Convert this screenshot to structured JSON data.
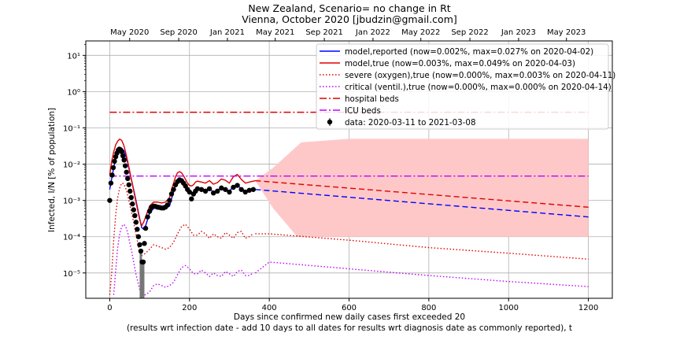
{
  "chart_data": {
    "type": "line",
    "title": "New Zealand, Scenario= no change in Rt",
    "subtitle": "Vienna, October 2020 [jbudzin@gmail.com]",
    "xlabel": "Days since confirmed new daily cases first exceeded 20",
    "xlabel2": "(results wrt infection date - add 10 days to all dates for results wrt diagnosis date as commonly reported), t",
    "ylabel": "Infected, I/N [% of population]",
    "xlim": [
      -60,
      1260
    ],
    "ylim": [
      2e-06,
      25
    ],
    "yscale": "log",
    "grid": true,
    "legend_position": "top-right",
    "x_ticks": [
      0,
      200,
      400,
      600,
      800,
      1000,
      1200
    ],
    "y_ticks": [
      {
        "value": 1e-05,
        "label": "10⁻⁵"
      },
      {
        "value": 0.0001,
        "label": "10⁻⁴"
      },
      {
        "value": 0.001,
        "label": "10⁻³"
      },
      {
        "value": 0.01,
        "label": "10⁻²"
      },
      {
        "value": 0.1,
        "label": "10⁻¹"
      },
      {
        "value": 1,
        "label": "10⁰"
      },
      {
        "value": 10,
        "label": "10¹"
      }
    ],
    "top_axis_ticks": [
      {
        "x": 50,
        "label": "May 2020"
      },
      {
        "x": 173,
        "label": "Sep 2020"
      },
      {
        "x": 295,
        "label": "Jan 2021"
      },
      {
        "x": 415,
        "label": "May 2021"
      },
      {
        "x": 538,
        "label": "Sep 2021"
      },
      {
        "x": 660,
        "label": "Jan 2022"
      },
      {
        "x": 780,
        "label": "May 2022"
      },
      {
        "x": 903,
        "label": "Sep 2022"
      },
      {
        "x": 1025,
        "label": "Jan 2023"
      },
      {
        "x": 1145,
        "label": "May 2023"
      }
    ],
    "series": [
      {
        "name": "model,reported (now=0.002%, max=0.027% on 2020-04-02)",
        "color": "#0000ff",
        "style": "solid",
        "x": [
          0,
          5,
          10,
          15,
          20,
          25,
          30,
          35,
          40,
          45,
          50,
          55,
          60,
          65,
          70,
          75,
          80,
          85,
          90,
          95,
          100,
          110,
          120,
          130,
          140,
          150,
          155,
          160,
          165,
          170,
          175,
          180,
          185,
          190,
          195,
          200,
          205,
          210,
          215,
          220,
          230,
          240,
          250,
          260,
          270,
          280,
          290,
          300,
          310,
          320,
          330,
          340,
          350,
          360,
          365
        ],
        "y": [
          0.002,
          0.004,
          0.008,
          0.014,
          0.021,
          0.026,
          0.027,
          0.024,
          0.017,
          0.011,
          0.006,
          0.0035,
          0.002,
          0.0011,
          0.0006,
          0.00032,
          0.00018,
          0.00016,
          0.0002,
          0.0003,
          0.00045,
          0.0006,
          0.00065,
          0.00065,
          0.0006,
          0.0007,
          0.0011,
          0.0017,
          0.0026,
          0.0034,
          0.0038,
          0.0036,
          0.003,
          0.0024,
          0.0019,
          0.0016,
          0.0015,
          0.0016,
          0.0019,
          0.0021,
          0.002,
          0.0019,
          0.0021,
          0.0017,
          0.0019,
          0.0022,
          0.0021,
          0.0018,
          0.0024,
          0.0026,
          0.0021,
          0.0018,
          0.0019,
          0.002,
          0.002
        ]
      },
      {
        "name": "model,true (now=0.003%, max=0.049% on 2020-04-03)",
        "color": "#e00000",
        "style": "solid",
        "x": [
          0,
          5,
          10,
          15,
          20,
          25,
          30,
          35,
          40,
          45,
          50,
          55,
          60,
          65,
          70,
          75,
          80,
          85,
          90,
          95,
          100,
          110,
          120,
          130,
          140,
          150,
          155,
          160,
          165,
          170,
          175,
          180,
          185,
          190,
          195,
          200,
          205,
          210,
          215,
          220,
          230,
          240,
          250,
          260,
          270,
          280,
          290,
          300,
          310,
          320,
          330,
          340,
          350,
          360,
          365
        ],
        "y": [
          0.005,
          0.012,
          0.022,
          0.034,
          0.043,
          0.049,
          0.045,
          0.034,
          0.021,
          0.012,
          0.0065,
          0.0035,
          0.0019,
          0.001,
          0.00055,
          0.0003,
          0.0002,
          0.00025,
          0.00035,
          0.0005,
          0.0007,
          0.0009,
          0.0009,
          0.00085,
          0.0009,
          0.0012,
          0.002,
          0.003,
          0.0045,
          0.0058,
          0.0062,
          0.0058,
          0.0048,
          0.0038,
          0.003,
          0.0026,
          0.0025,
          0.0027,
          0.0032,
          0.0034,
          0.0032,
          0.003,
          0.0035,
          0.0028,
          0.0031,
          0.0039,
          0.0036,
          0.003,
          0.0045,
          0.0052,
          0.0038,
          0.003,
          0.0032,
          0.0034,
          0.0035
        ]
      },
      {
        "name": "severe (oxygen),true (now=0.000%, max=0.003% on 2020-04-11)",
        "color": "#e00000",
        "style": "dotted",
        "x": [
          0,
          5,
          10,
          15,
          20,
          25,
          30,
          35,
          40,
          45,
          50,
          55,
          60,
          65,
          70,
          75,
          80,
          90,
          100,
          110,
          120,
          130,
          140,
          150,
          160,
          170,
          180,
          190,
          200,
          210,
          220,
          230,
          240,
          250,
          260,
          270,
          280,
          290,
          300,
          310,
          320,
          330,
          340,
          350,
          360
        ],
        "y": [
          2.5e-06,
          1e-05,
          8e-05,
          0.0004,
          0.0012,
          0.0022,
          0.003,
          0.0029,
          0.0022,
          0.0014,
          0.0008,
          0.00045,
          0.00025,
          0.00013,
          7e-05,
          4e-05,
          3e-05,
          3.5e-05,
          4.5e-05,
          6e-05,
          5.5e-05,
          5e-05,
          4.5e-05,
          5e-05,
          7e-05,
          0.00012,
          0.00019,
          0.00022,
          0.00016,
          0.00011,
          0.00011,
          0.00014,
          0.00012,
          9e-05,
          0.00012,
          0.0001,
          9e-05,
          0.00013,
          0.00011,
          9e-05,
          0.00013,
          0.00014,
          9e-05,
          0.0001,
          0.00012
        ]
      },
      {
        "name": "critical (ventil.),true (now=0.000%, max=0.000% on 2020-04-14)",
        "color": "#c000ff",
        "style": "dotted",
        "x": [
          10,
          15,
          20,
          25,
          30,
          35,
          40,
          45,
          50,
          55,
          60,
          65,
          70,
          75,
          80,
          90,
          100,
          110,
          120,
          130,
          140,
          150,
          160,
          170,
          180,
          190,
          200,
          210,
          220,
          230,
          240,
          250,
          260,
          270,
          280,
          290,
          300,
          310,
          320,
          330,
          340,
          350,
          360
        ],
        "y": [
          2.5e-06,
          1.2e-05,
          5e-05,
          0.00012,
          0.00019,
          0.00022,
          0.00019,
          0.00013,
          7e-05,
          4e-05,
          2e-05,
          1e-05,
          6e-06,
          3.5e-06,
          2.5e-06,
          2.5e-06,
          3e-06,
          4.5e-06,
          5e-06,
          4.5e-06,
          4e-06,
          4.5e-06,
          5.5e-06,
          9e-06,
          1.4e-05,
          1.6e-05,
          1.3e-05,
          9.5e-06,
          9.5e-06,
          1.2e-05,
          1e-05,
          8e-06,
          1e-05,
          8.5e-06,
          8e-06,
          1.1e-05,
          9.5e-06,
          8e-06,
          1.1e-05,
          1.2e-05,
          8.5e-06,
          8.5e-06,
          1e-05
        ]
      },
      {
        "name": "hospital beds",
        "color": "#e00000",
        "style": "dashdot",
        "x": [
          0,
          1200
        ],
        "y": [
          0.27,
          0.27
        ]
      },
      {
        "name": "ICU beds",
        "color": "#c000ff",
        "style": "dashdot",
        "x": [
          0,
          1200
        ],
        "y": [
          0.0047,
          0.0047
        ]
      }
    ],
    "projections": [
      {
        "of": "model,reported",
        "color": "#0000ff",
        "style": "dashed",
        "x": [
          365,
          1200
        ],
        "y": [
          0.002,
          0.00035
        ]
      },
      {
        "of": "model,true",
        "color": "#e00000",
        "style": "dashed",
        "x": [
          365,
          1200
        ],
        "y": [
          0.0035,
          0.00065
        ]
      },
      {
        "of": "severe",
        "color": "#e00000",
        "style": "dotted",
        "x": [
          365,
          400,
          600,
          800,
          1000,
          1200
        ],
        "y": [
          0.00012,
          0.00012,
          8e-05,
          5e-05,
          3.5e-05,
          2.4e-05
        ]
      },
      {
        "of": "critical",
        "color": "#c000ff",
        "style": "dotted",
        "x": [
          365,
          400,
          600,
          800,
          1000,
          1200
        ],
        "y": [
          1e-05,
          2e-05,
          1.3e-05,
          8.5e-06,
          5.8e-06,
          4.2e-06
        ]
      }
    ],
    "uncertainty_band": {
      "color": "#ffc8c8",
      "x": [
        365,
        410,
        480,
        600,
        800,
        1000,
        1200,
        1200,
        1000,
        800,
        600,
        470,
        410,
        365
      ],
      "y": [
        0.0035,
        0.008,
        0.04,
        0.05,
        0.05,
        0.05,
        0.05,
        0.0001,
        0.0001,
        0.0001,
        0.0001,
        0.0001,
        0.0006,
        0.0035
      ]
    },
    "data_points": {
      "name": "data: 2020-03-11 to 2021-03-08",
      "color": "#000000",
      "x": [
        0,
        3,
        6,
        9,
        12,
        15,
        18,
        21,
        24,
        27,
        30,
        33,
        36,
        39,
        42,
        45,
        48,
        51,
        54,
        57,
        60,
        63,
        66,
        69,
        72,
        75,
        78,
        81,
        84,
        87,
        90,
        95,
        100,
        105,
        110,
        115,
        120,
        125,
        130,
        135,
        140,
        145,
        150,
        155,
        160,
        165,
        170,
        175,
        180,
        185,
        190,
        195,
        200,
        205,
        210,
        215,
        220,
        230,
        240,
        250,
        260,
        270,
        280,
        290,
        300,
        310,
        320,
        330,
        340,
        350,
        360
      ],
      "y": [
        0.001,
        0.003,
        0.005,
        0.008,
        0.012,
        0.016,
        0.02,
        0.024,
        0.026,
        0.025,
        0.022,
        0.017,
        0.013,
        0.009,
        0.006,
        0.004,
        0.0027,
        0.0018,
        0.0012,
        0.0008,
        0.00055,
        0.00038,
        0.00025,
        0.00016,
        0.0001,
        6e-05,
        4e-05,
        2e-05,
        2e-05,
        6.5e-05,
        0.00017,
        0.00035,
        0.0005,
        0.00065,
        0.0007,
        0.00068,
        0.00065,
        0.00064,
        0.00062,
        0.00062,
        0.00066,
        0.00075,
        0.001,
        0.0015,
        0.002,
        0.0027,
        0.0033,
        0.0037,
        0.0035,
        0.003,
        0.0025,
        0.002,
        0.0017,
        0.0011,
        0.0015,
        0.0018,
        0.0021,
        0.002,
        0.0018,
        0.0021,
        0.0016,
        0.0018,
        0.0022,
        0.002,
        0.0017,
        0.0023,
        0.0026,
        0.002,
        0.0017,
        0.0019,
        0.002
      ]
    }
  }
}
